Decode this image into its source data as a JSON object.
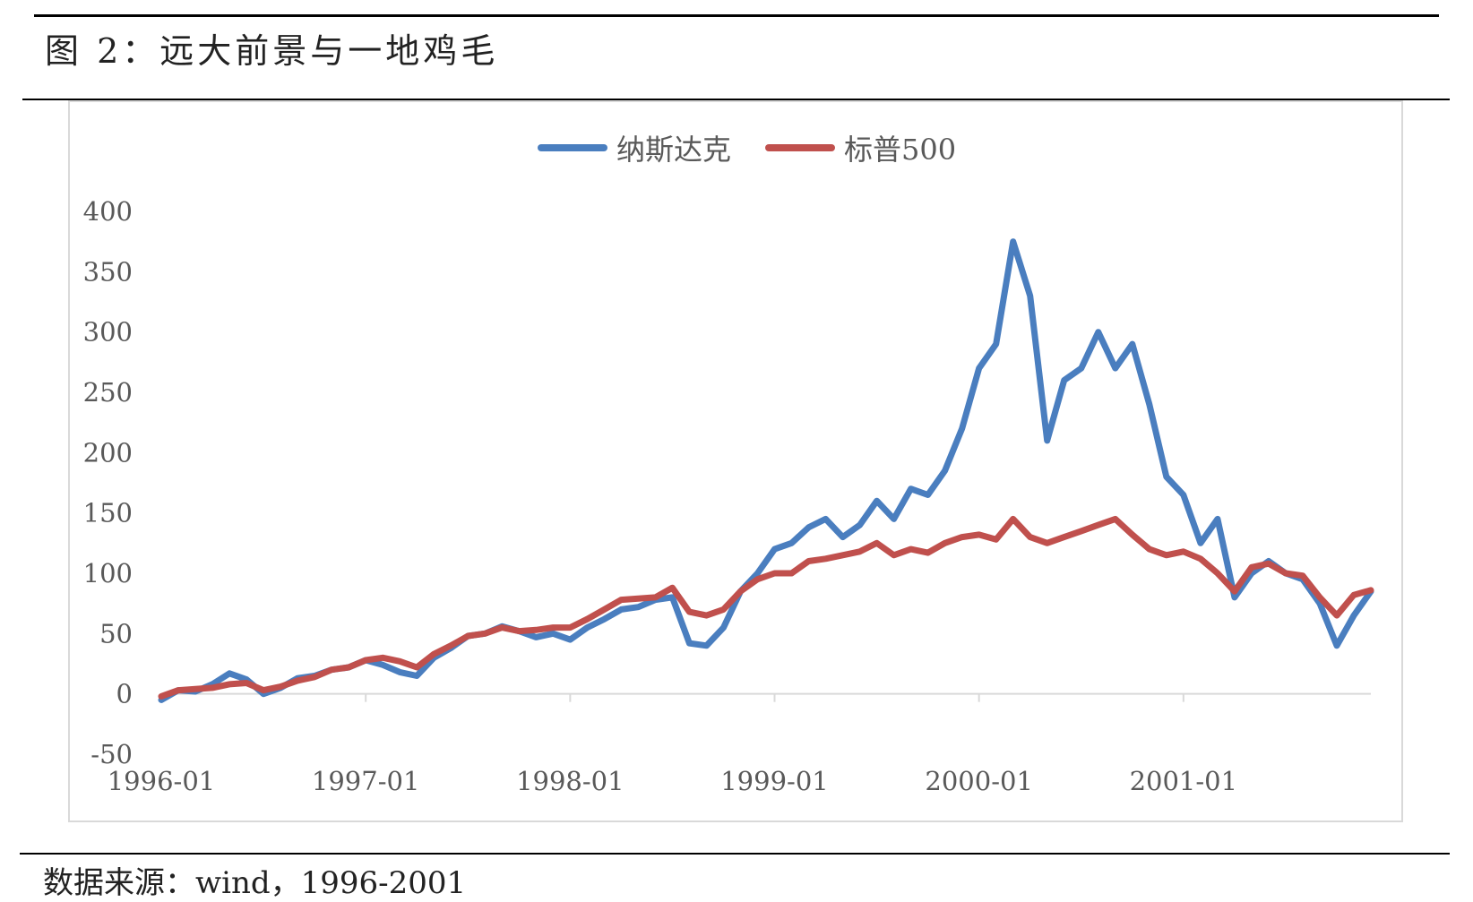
{
  "figure": {
    "title": "图 2：远大前景与一地鸡毛",
    "source": "数据来源：wind，1996-2001"
  },
  "colors": {
    "nasdaq": "#4a7ebf",
    "sp500": "#c0504d",
    "axis": "#d9d9d9",
    "text": "#595959"
  },
  "chart_data": {
    "type": "line",
    "title": "",
    "xlabel": "",
    "ylabel": "",
    "ylim": [
      -50,
      400
    ],
    "yticks": [
      -50,
      0,
      50,
      100,
      150,
      200,
      250,
      300,
      350,
      400
    ],
    "xlim": [
      "1996-01",
      "2001-12"
    ],
    "xticks": [
      "1996-01",
      "1997-01",
      "1998-01",
      "1999-01",
      "2000-01",
      "2001-01"
    ],
    "grid": false,
    "legend_position": "top-center",
    "series": [
      {
        "name": "纳斯达克",
        "color": "#4a7ebf",
        "points": [
          [
            "1996-01",
            -5
          ],
          [
            "1996-02",
            3
          ],
          [
            "1996-03",
            2
          ],
          [
            "1996-04",
            8
          ],
          [
            "1996-05",
            17
          ],
          [
            "1996-06",
            12
          ],
          [
            "1996-07",
            0
          ],
          [
            "1996-08",
            5
          ],
          [
            "1996-09",
            13
          ],
          [
            "1996-10",
            15
          ],
          [
            "1996-11",
            20
          ],
          [
            "1996-12",
            22
          ],
          [
            "1997-01",
            28
          ],
          [
            "1997-02",
            24
          ],
          [
            "1997-03",
            18
          ],
          [
            "1997-04",
            15
          ],
          [
            "1997-05",
            30
          ],
          [
            "1997-06",
            38
          ],
          [
            "1997-07",
            48
          ],
          [
            "1997-08",
            50
          ],
          [
            "1997-09",
            56
          ],
          [
            "1997-10",
            52
          ],
          [
            "1997-11",
            47
          ],
          [
            "1997-12",
            50
          ],
          [
            "1998-01",
            45
          ],
          [
            "1998-02",
            55
          ],
          [
            "1998-03",
            62
          ],
          [
            "1998-04",
            70
          ],
          [
            "1998-05",
            72
          ],
          [
            "1998-06",
            78
          ],
          [
            "1998-07",
            80
          ],
          [
            "1998-08",
            42
          ],
          [
            "1998-09",
            40
          ],
          [
            "1998-10",
            55
          ],
          [
            "1998-11",
            85
          ],
          [
            "1998-12",
            100
          ],
          [
            "1999-01",
            120
          ],
          [
            "1999-02",
            125
          ],
          [
            "1999-03",
            138
          ],
          [
            "1999-04",
            145
          ],
          [
            "1999-05",
            130
          ],
          [
            "1999-06",
            140
          ],
          [
            "1999-07",
            160
          ],
          [
            "1999-08",
            145
          ],
          [
            "1999-09",
            170
          ],
          [
            "1999-10",
            165
          ],
          [
            "1999-11",
            185
          ],
          [
            "1999-12",
            220
          ],
          [
            "2000-01",
            270
          ],
          [
            "2000-02",
            290
          ],
          [
            "2000-03",
            375
          ],
          [
            "2000-04",
            330
          ],
          [
            "2000-05",
            210
          ],
          [
            "2000-06",
            260
          ],
          [
            "2000-07",
            270
          ],
          [
            "2000-08",
            300
          ],
          [
            "2000-09",
            270
          ],
          [
            "2000-10",
            290
          ],
          [
            "2000-11",
            240
          ],
          [
            "2000-12",
            180
          ],
          [
            "2001-01",
            165
          ],
          [
            "2001-02",
            125
          ],
          [
            "2001-03",
            145
          ],
          [
            "2001-04",
            80
          ],
          [
            "2001-05",
            100
          ],
          [
            "2001-06",
            110
          ],
          [
            "2001-07",
            100
          ],
          [
            "2001-08",
            95
          ],
          [
            "2001-09",
            75
          ],
          [
            "2001-10",
            40
          ],
          [
            "2001-11",
            65
          ],
          [
            "2001-12",
            85
          ]
        ]
      },
      {
        "name": "标普500",
        "color": "#c0504d",
        "points": [
          [
            "1996-01",
            -2
          ],
          [
            "1996-02",
            3
          ],
          [
            "1996-03",
            4
          ],
          [
            "1996-04",
            5
          ],
          [
            "1996-05",
            8
          ],
          [
            "1996-06",
            9
          ],
          [
            "1996-07",
            3
          ],
          [
            "1996-08",
            6
          ],
          [
            "1996-09",
            11
          ],
          [
            "1996-10",
            14
          ],
          [
            "1996-11",
            20
          ],
          [
            "1996-12",
            22
          ],
          [
            "1997-01",
            28
          ],
          [
            "1997-02",
            30
          ],
          [
            "1997-03",
            27
          ],
          [
            "1997-04",
            22
          ],
          [
            "1997-05",
            33
          ],
          [
            "1997-06",
            40
          ],
          [
            "1997-07",
            48
          ],
          [
            "1997-08",
            50
          ],
          [
            "1997-09",
            55
          ],
          [
            "1997-10",
            52
          ],
          [
            "1997-11",
            53
          ],
          [
            "1997-12",
            55
          ],
          [
            "1998-01",
            55
          ],
          [
            "1998-02",
            62
          ],
          [
            "1998-03",
            70
          ],
          [
            "1998-04",
            78
          ],
          [
            "1998-05",
            79
          ],
          [
            "1998-06",
            80
          ],
          [
            "1998-07",
            88
          ],
          [
            "1998-08",
            68
          ],
          [
            "1998-09",
            65
          ],
          [
            "1998-10",
            70
          ],
          [
            "1998-11",
            85
          ],
          [
            "1998-12",
            95
          ],
          [
            "1999-01",
            100
          ],
          [
            "1999-02",
            100
          ],
          [
            "1999-03",
            110
          ],
          [
            "1999-04",
            112
          ],
          [
            "1999-05",
            115
          ],
          [
            "1999-06",
            118
          ],
          [
            "1999-07",
            125
          ],
          [
            "1999-08",
            115
          ],
          [
            "1999-09",
            120
          ],
          [
            "1999-10",
            117
          ],
          [
            "1999-11",
            125
          ],
          [
            "1999-12",
            130
          ],
          [
            "2000-01",
            132
          ],
          [
            "2000-02",
            128
          ],
          [
            "2000-03",
            145
          ],
          [
            "2000-04",
            130
          ],
          [
            "2000-05",
            125
          ],
          [
            "2000-06",
            130
          ],
          [
            "2000-07",
            135
          ],
          [
            "2000-08",
            140
          ],
          [
            "2000-09",
            145
          ],
          [
            "2000-10",
            132
          ],
          [
            "2000-11",
            120
          ],
          [
            "2000-12",
            115
          ],
          [
            "2001-01",
            118
          ],
          [
            "2001-02",
            112
          ],
          [
            "2001-03",
            100
          ],
          [
            "2001-04",
            85
          ],
          [
            "2001-05",
            105
          ],
          [
            "2001-06",
            108
          ],
          [
            "2001-07",
            100
          ],
          [
            "2001-08",
            98
          ],
          [
            "2001-09",
            80
          ],
          [
            "2001-10",
            65
          ],
          [
            "2001-11",
            82
          ],
          [
            "2001-12",
            86
          ]
        ]
      }
    ]
  }
}
